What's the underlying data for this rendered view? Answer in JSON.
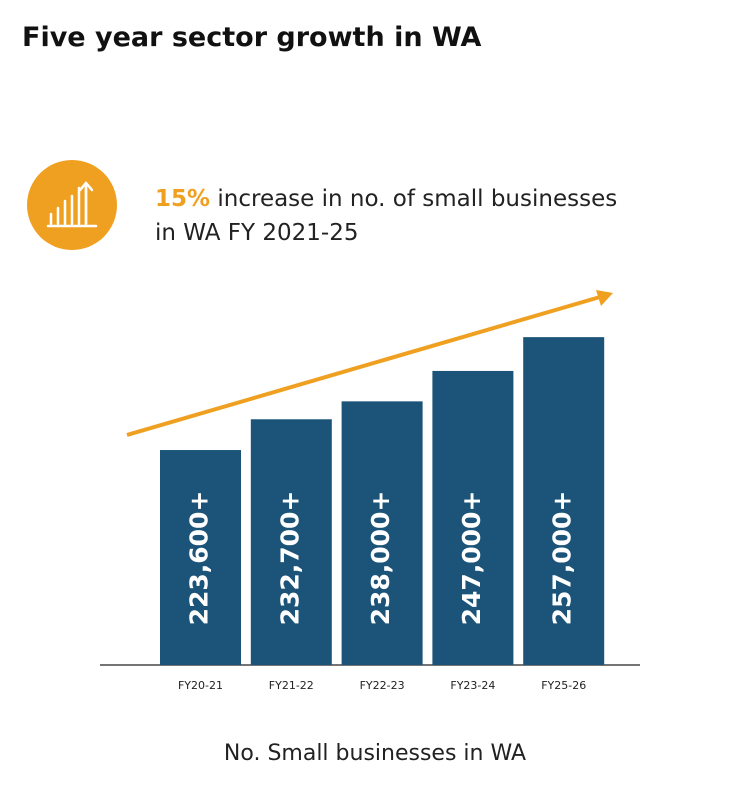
{
  "title": "Five year sector growth in WA",
  "headline": {
    "highlight": "15%",
    "text": "increase in no. of small businesses in WA FY 2021-25"
  },
  "chart_data": {
    "type": "bar",
    "categories": [
      "FY20-21",
      "FY21-22",
      "FY22-23",
      "FY23-24",
      "FY25-26"
    ],
    "values": [
      223600,
      232700,
      238000,
      247000,
      257000
    ],
    "value_labels": [
      "223,600+",
      "232,700+",
      "238,000+",
      "247,000+",
      "257,000+"
    ],
    "color": "#1b5478",
    "ylim": [
      160000,
      260000
    ],
    "caption": "No. Small businesses in WA"
  }
}
